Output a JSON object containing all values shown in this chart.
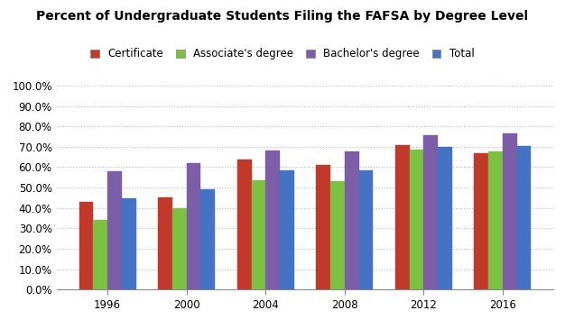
{
  "title": "Percent of Undergraduate Students Filing the FAFSA by Degree Level",
  "years": [
    1996,
    2000,
    2004,
    2008,
    2012,
    2016
  ],
  "series": {
    "Certificate": [
      0.43,
      0.45,
      0.635,
      0.61,
      0.71,
      0.67
    ],
    "Associate's degree": [
      0.34,
      0.4,
      0.535,
      0.53,
      0.685,
      0.675
    ],
    "Bachelor's degree": [
      0.58,
      0.62,
      0.68,
      0.675,
      0.755,
      0.765
    ],
    "Total": [
      0.445,
      0.49,
      0.585,
      0.585,
      0.7,
      0.705
    ]
  },
  "colors": {
    "Certificate": "#C0392B",
    "Associate's degree": "#7DC142",
    "Bachelor's degree": "#7B5EA7",
    "Total": "#4472C4"
  },
  "legend_labels": [
    "Certificate",
    "Associate's degree",
    "Bachelor's degree",
    "Total"
  ],
  "ylim": [
    0.0,
    1.0
  ],
  "yticks": [
    0.0,
    0.1,
    0.2,
    0.3,
    0.4,
    0.5,
    0.6,
    0.7,
    0.8,
    0.9,
    1.0
  ],
  "ytick_labels": [
    "0.0%",
    "10.0%",
    "20.0%",
    "30.0%",
    "40.0%",
    "50.0%",
    "60.0%",
    "70.0%",
    "80.0%",
    "90.0%",
    "100.0%"
  ],
  "bar_width": 0.18,
  "background_color": "#FFFFFF",
  "grid_color": "#BBBBBB",
  "title_fontsize": 10,
  "legend_fontsize": 8.5,
  "tick_fontsize": 8.5
}
